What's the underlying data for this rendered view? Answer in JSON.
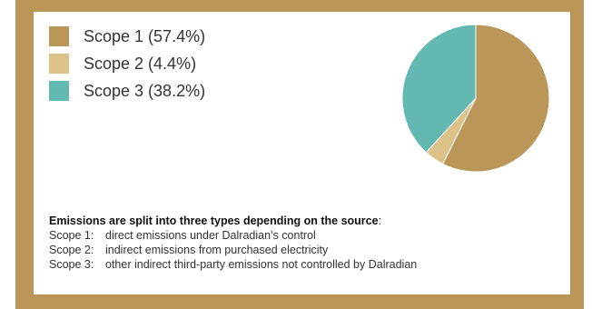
{
  "chart_data": {
    "type": "pie",
    "title": "",
    "series": [
      {
        "name": "Scope 1",
        "label": "Scope 1 (57.4%)",
        "value": 57.4,
        "color": "#bb9659"
      },
      {
        "name": "Scope 2",
        "label": "Scope 2 (4.4%)",
        "value": 4.4,
        "color": "#dcc289"
      },
      {
        "name": "Scope 3",
        "label": "Scope 3 (38.2%)",
        "value": 38.2,
        "color": "#63b8b1"
      }
    ],
    "legend_position": "top-left"
  },
  "notes": {
    "intro_bold": "Emissions are split into three types depending on the source",
    "intro_colon": ":",
    "items": [
      {
        "term": "Scope 1:",
        "text": "direct emissions under Dalradian’s control"
      },
      {
        "term": "Scope 2:",
        "text": "indirect emissions from purchased electricity"
      },
      {
        "term": "Scope 3:",
        "text": "other indirect third-party emissions not controlled by Dalradian"
      }
    ]
  },
  "colors": {
    "frame": "#bb9659",
    "panel": "#ffffff",
    "text": "#333333"
  }
}
